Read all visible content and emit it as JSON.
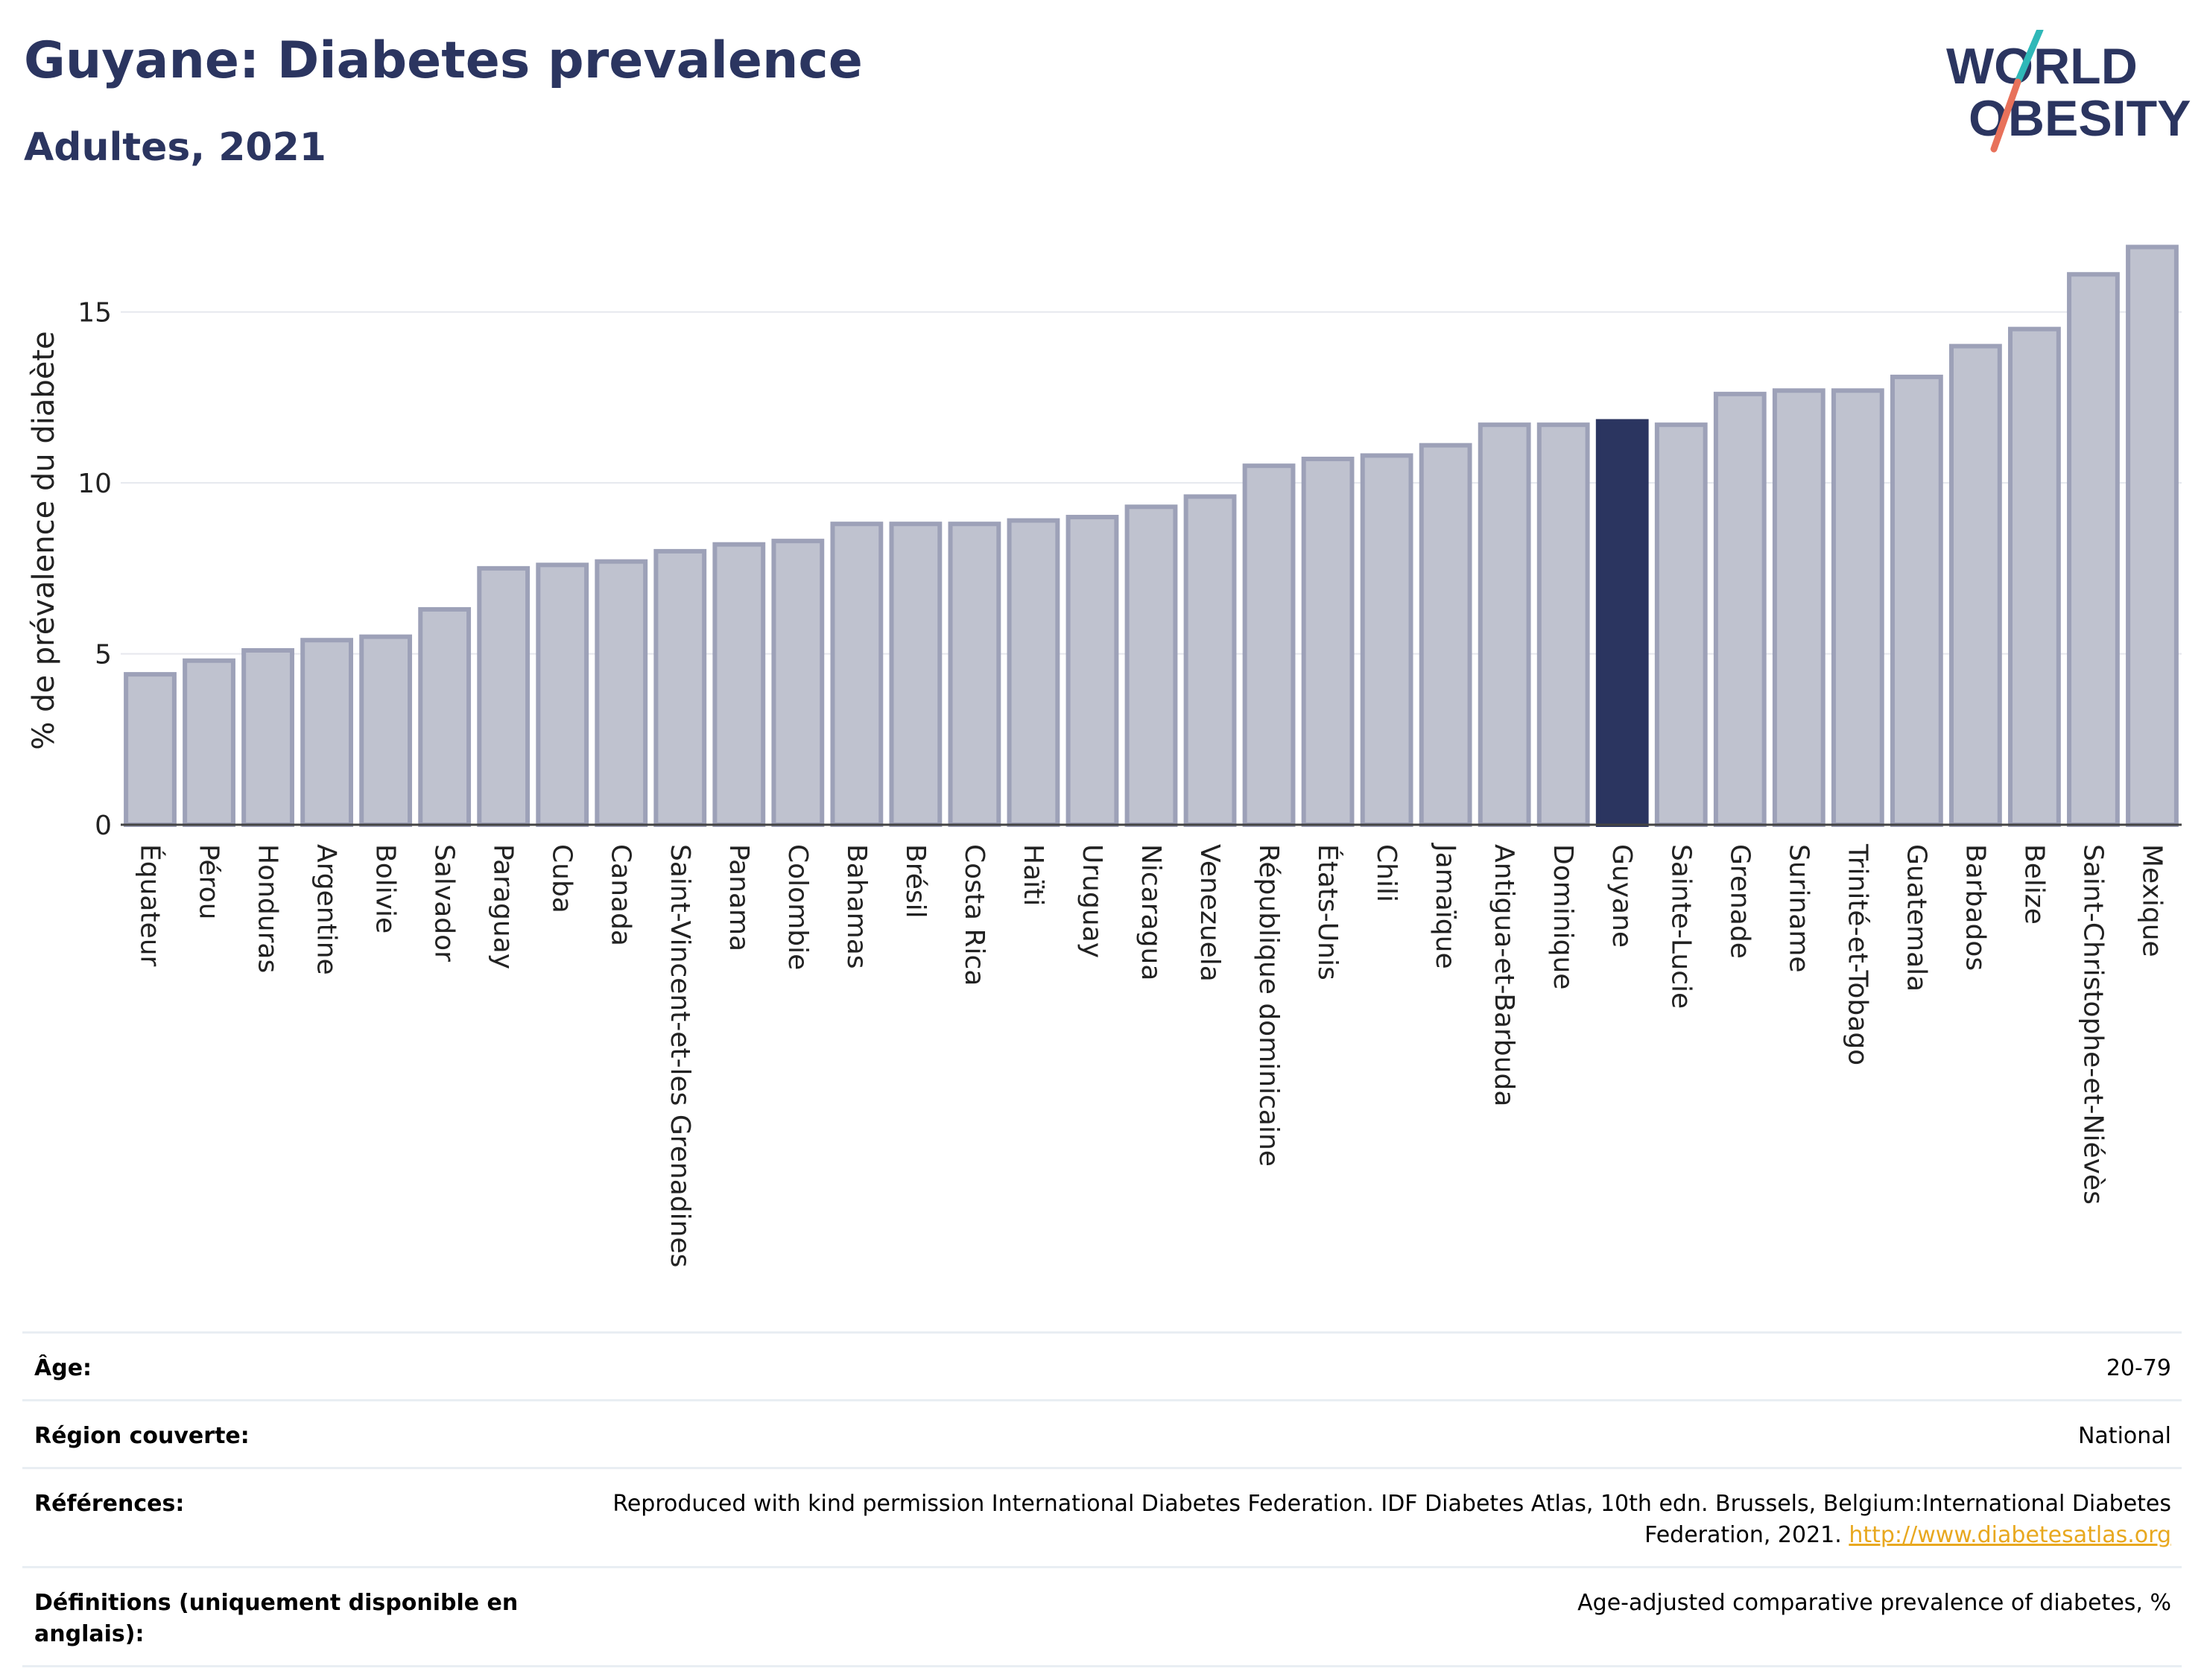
{
  "header": {
    "title": "Guyane: Diabetes prevalence",
    "subtitle": "Adultes, 2021",
    "logo_line1": "WORLD",
    "logo_line2": "OBESITY"
  },
  "colors": {
    "bar": "#bfc2cf",
    "bar_outline": "#9da1b8",
    "highlight": "#2b3560",
    "title": "#2b3560",
    "logo_slash_top": "#2fb8b8",
    "logo_slash_bottom": "#e8715a"
  },
  "chart_data": {
    "type": "bar",
    "title": "Guyane: Diabetes prevalence",
    "subtitle": "Adultes, 2021",
    "ylabel": "% de prévalence du diabète",
    "xlabel": "",
    "ylim": [
      0,
      17.5
    ],
    "yticks": [
      0,
      5,
      10,
      15
    ],
    "grid": true,
    "highlight": "Guyane",
    "categories": [
      "Équateur",
      "Pérou",
      "Honduras",
      "Argentine",
      "Bolivie",
      "Salvador",
      "Paraguay",
      "Cuba",
      "Canada",
      "Saint-Vincent-et-les Grenadines",
      "Panama",
      "Colombie",
      "Bahamas",
      "Brésil",
      "Costa Rica",
      "Haïti",
      "Uruguay",
      "Nicaragua",
      "Venezuela",
      "République dominicaine",
      "États-Unis",
      "Chili",
      "Jamaïque",
      "Antigua-et-Barbuda",
      "Dominique",
      "Guyane",
      "Sainte-Lucie",
      "Grenade",
      "Suriname",
      "Trinité-et-Tobago",
      "Guatemala",
      "Barbados",
      "Belize",
      "Saint-Christophe-et-Niévès",
      "Mexique"
    ],
    "values": [
      4.4,
      4.8,
      5.1,
      5.4,
      5.5,
      6.3,
      7.5,
      7.6,
      7.7,
      8.0,
      8.2,
      8.3,
      8.8,
      8.8,
      8.8,
      8.9,
      9.0,
      9.3,
      9.6,
      10.5,
      10.7,
      10.8,
      11.1,
      11.7,
      11.7,
      11.8,
      11.7,
      12.6,
      12.7,
      12.7,
      13.1,
      14.0,
      14.5,
      16.1,
      16.9
    ]
  },
  "info": [
    {
      "label": "Âge:",
      "value": "20-79"
    },
    {
      "label": "Région couverte:",
      "value": "National"
    },
    {
      "label": "Références:",
      "value": "Reproduced with kind permission International Diabetes Federation.  IDF Diabetes Atlas, 10th edn. Brussels, Belgium:International Diabetes Federation, 2021. ",
      "link": "http://www.diabetesatlas.org"
    },
    {
      "label": "Définitions (uniquement disponible en anglais):",
      "value": "Age-adjusted comparative prevalence of diabetes, %"
    }
  ]
}
